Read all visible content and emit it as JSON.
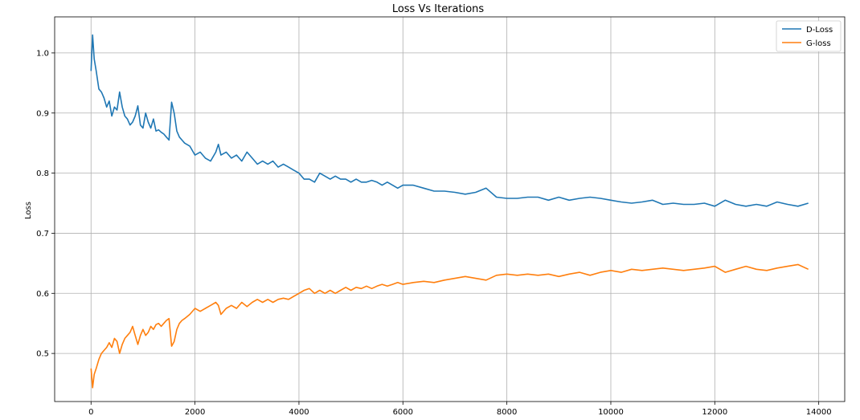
{
  "chart_data": {
    "type": "line",
    "title": "Loss Vs Iterations",
    "xlabel": "",
    "ylabel": "Loss",
    "xlim": [
      -700,
      14500
    ],
    "ylim": [
      0.42,
      1.06
    ],
    "xticks": [
      0,
      2000,
      4000,
      6000,
      8000,
      10000,
      12000,
      14000
    ],
    "yticks": [
      0.5,
      0.6,
      0.7,
      0.8,
      0.9,
      1.0
    ],
    "xtick_labels": [
      "0",
      "2000",
      "4000",
      "6000",
      "8000",
      "10000",
      "12000",
      "14000"
    ],
    "ytick_labels": [
      "0.5",
      "0.6",
      "0.7",
      "0.8",
      "0.9",
      "1.0"
    ],
    "grid": true,
    "legend_position": "top-right",
    "colors": {
      "d_loss": "#1f77b4",
      "g_loss": "#ff7f0e",
      "grid": "#b0b0b0"
    },
    "series": [
      {
        "name": "D-Loss",
        "x": [
          0,
          30,
          60,
          100,
          150,
          200,
          250,
          300,
          350,
          400,
          450,
          500,
          550,
          600,
          650,
          700,
          750,
          800,
          850,
          900,
          950,
          1000,
          1050,
          1100,
          1150,
          1200,
          1250,
          1300,
          1350,
          1400,
          1450,
          1500,
          1550,
          1600,
          1650,
          1700,
          1750,
          1800,
          1900,
          2000,
          2100,
          2200,
          2300,
          2400,
          2450,
          2500,
          2600,
          2700,
          2800,
          2900,
          3000,
          3100,
          3200,
          3300,
          3400,
          3500,
          3600,
          3700,
          3800,
          3900,
          4000,
          4100,
          4200,
          4300,
          4400,
          4500,
          4600,
          4700,
          4800,
          4900,
          5000,
          5100,
          5200,
          5300,
          5400,
          5500,
          5600,
          5700,
          5800,
          5900,
          6000,
          6200,
          6400,
          6600,
          6800,
          7000,
          7200,
          7400,
          7600,
          7800,
          8000,
          8200,
          8400,
          8600,
          8800,
          9000,
          9200,
          9400,
          9600,
          9800,
          10000,
          10200,
          10400,
          10600,
          10800,
          11000,
          11200,
          11400,
          11600,
          11800,
          12000,
          12200,
          12400,
          12600,
          12800,
          13000,
          13200,
          13400,
          13600,
          13800
        ],
        "values": [
          0.97,
          1.03,
          0.99,
          0.97,
          0.94,
          0.935,
          0.925,
          0.91,
          0.92,
          0.895,
          0.91,
          0.905,
          0.935,
          0.91,
          0.895,
          0.89,
          0.88,
          0.885,
          0.895,
          0.912,
          0.88,
          0.875,
          0.9,
          0.885,
          0.875,
          0.89,
          0.87,
          0.872,
          0.868,
          0.865,
          0.86,
          0.855,
          0.918,
          0.9,
          0.87,
          0.86,
          0.855,
          0.85,
          0.845,
          0.83,
          0.835,
          0.825,
          0.82,
          0.835,
          0.848,
          0.83,
          0.835,
          0.825,
          0.83,
          0.82,
          0.835,
          0.825,
          0.815,
          0.82,
          0.815,
          0.82,
          0.81,
          0.815,
          0.81,
          0.805,
          0.8,
          0.79,
          0.79,
          0.785,
          0.8,
          0.795,
          0.79,
          0.795,
          0.79,
          0.79,
          0.785,
          0.79,
          0.785,
          0.785,
          0.788,
          0.785,
          0.78,
          0.785,
          0.78,
          0.775,
          0.78,
          0.78,
          0.775,
          0.77,
          0.77,
          0.768,
          0.765,
          0.768,
          0.775,
          0.76,
          0.758,
          0.758,
          0.76,
          0.76,
          0.755,
          0.76,
          0.755,
          0.758,
          0.76,
          0.758,
          0.755,
          0.752,
          0.75,
          0.752,
          0.755,
          0.748,
          0.75,
          0.748,
          0.748,
          0.75,
          0.745,
          0.755,
          0.748,
          0.745,
          0.748,
          0.745,
          0.752,
          0.748,
          0.745,
          0.75
        ]
      },
      {
        "name": "G-loss",
        "x": [
          0,
          30,
          60,
          100,
          150,
          200,
          250,
          300,
          350,
          400,
          450,
          500,
          550,
          600,
          650,
          700,
          750,
          800,
          850,
          900,
          950,
          1000,
          1050,
          1100,
          1150,
          1200,
          1250,
          1300,
          1350,
          1400,
          1450,
          1500,
          1550,
          1600,
          1650,
          1700,
          1750,
          1800,
          1900,
          2000,
          2100,
          2200,
          2300,
          2400,
          2450,
          2500,
          2600,
          2700,
          2800,
          2900,
          3000,
          3100,
          3200,
          3300,
          3400,
          3500,
          3600,
          3700,
          3800,
          3900,
          4000,
          4100,
          4200,
          4300,
          4400,
          4500,
          4600,
          4700,
          4800,
          4900,
          5000,
          5100,
          5200,
          5300,
          5400,
          5500,
          5600,
          5700,
          5800,
          5900,
          6000,
          6200,
          6400,
          6600,
          6800,
          7000,
          7200,
          7400,
          7600,
          7800,
          8000,
          8200,
          8400,
          8600,
          8800,
          9000,
          9200,
          9400,
          9600,
          9800,
          10000,
          10200,
          10400,
          10600,
          10800,
          11000,
          11200,
          11400,
          11600,
          11800,
          12000,
          12200,
          12400,
          12600,
          12800,
          13000,
          13200,
          13400,
          13600,
          13800
        ],
        "values": [
          0.475,
          0.443,
          0.465,
          0.475,
          0.49,
          0.5,
          0.505,
          0.51,
          0.518,
          0.51,
          0.525,
          0.52,
          0.5,
          0.515,
          0.525,
          0.53,
          0.535,
          0.545,
          0.53,
          0.515,
          0.53,
          0.54,
          0.53,
          0.535,
          0.545,
          0.54,
          0.548,
          0.55,
          0.545,
          0.55,
          0.555,
          0.558,
          0.512,
          0.52,
          0.54,
          0.55,
          0.555,
          0.558,
          0.565,
          0.575,
          0.57,
          0.575,
          0.58,
          0.585,
          0.58,
          0.565,
          0.575,
          0.58,
          0.575,
          0.585,
          0.578,
          0.585,
          0.59,
          0.585,
          0.59,
          0.585,
          0.59,
          0.592,
          0.59,
          0.595,
          0.6,
          0.605,
          0.608,
          0.6,
          0.605,
          0.6,
          0.605,
          0.6,
          0.605,
          0.61,
          0.605,
          0.61,
          0.608,
          0.612,
          0.608,
          0.612,
          0.615,
          0.612,
          0.615,
          0.618,
          0.615,
          0.618,
          0.62,
          0.618,
          0.622,
          0.625,
          0.628,
          0.625,
          0.622,
          0.63,
          0.632,
          0.63,
          0.632,
          0.63,
          0.632,
          0.628,
          0.632,
          0.635,
          0.63,
          0.635,
          0.638,
          0.635,
          0.64,
          0.638,
          0.64,
          0.642,
          0.64,
          0.638,
          0.64,
          0.642,
          0.645,
          0.635,
          0.64,
          0.645,
          0.64,
          0.638,
          0.642,
          0.645,
          0.648,
          0.64
        ]
      }
    ]
  }
}
